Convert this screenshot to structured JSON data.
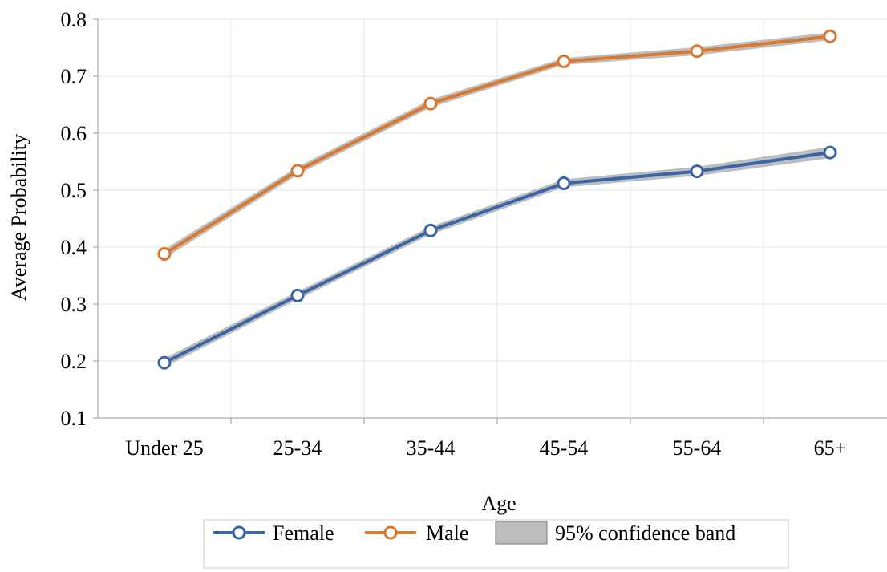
{
  "chart_data": {
    "type": "line",
    "xlabel": "Age",
    "ylabel": "Average Probability",
    "categories": [
      "Under 25",
      "25-34",
      "35-44",
      "45-54",
      "55-64",
      "65+"
    ],
    "ylim": [
      0.1,
      0.8
    ],
    "yticks": [
      "0.1",
      "0.2",
      "0.3",
      "0.4",
      "0.5",
      "0.6",
      "0.7",
      "0.8"
    ],
    "grid": true,
    "legend_position": "bottom",
    "series": [
      {
        "name": "Female",
        "color": "#3a65a8",
        "values": [
          0.197,
          0.315,
          0.429,
          0.512,
          0.533,
          0.566
        ],
        "ci_lower": [
          0.189,
          0.308,
          0.422,
          0.505,
          0.525,
          0.556
        ],
        "ci_upper": [
          0.205,
          0.322,
          0.436,
          0.519,
          0.541,
          0.576
        ]
      },
      {
        "name": "Male",
        "color": "#d9782e",
        "values": [
          0.388,
          0.534,
          0.652,
          0.726,
          0.744,
          0.77
        ],
        "ci_lower": [
          0.38,
          0.527,
          0.645,
          0.72,
          0.737,
          0.763
        ],
        "ci_upper": [
          0.396,
          0.541,
          0.659,
          0.732,
          0.751,
          0.777
        ]
      }
    ],
    "band_legend_label": "95% confidence band",
    "band_color": "#bdbdbd"
  }
}
